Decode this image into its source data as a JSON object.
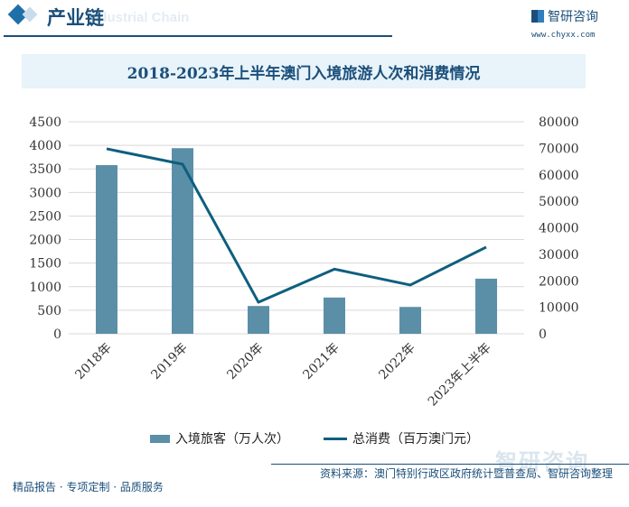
{
  "header": {
    "title": "产业链",
    "subtitle": "Industrial Chain",
    "logo_text": "智研咨询",
    "logo_url": "www.chyxx.com"
  },
  "footer": {
    "left": "精品报告 · 专项定制 · 品质服务",
    "source": "资料来源：澳门特别行政区政府统计暨普查局、智研咨询整理",
    "watermark": "智研咨询"
  },
  "chart_data": {
    "type": "bar+line",
    "title": "2018-2023年上半年澳门入境旅游人次和消费情况",
    "categories": [
      "2018年",
      "2019年",
      "2020年",
      "2021年",
      "2022年",
      "2023年上半年"
    ],
    "series": [
      {
        "name": "入境旅客（万人次）",
        "type": "bar",
        "axis": "left",
        "color": "#5b8fa8",
        "values": [
          3580,
          3940,
          590,
          770,
          570,
          1170
        ]
      },
      {
        "name": "总消费（百万澳门元）",
        "type": "line",
        "axis": "right",
        "color": "#0e5f7e",
        "values": [
          69800,
          64000,
          11900,
          24400,
          18400,
          32700
        ]
      }
    ],
    "ylim_left": [
      0,
      4500
    ],
    "yticks_left": [
      0,
      500,
      1000,
      1500,
      2000,
      2500,
      3000,
      3500,
      4000,
      4500
    ],
    "ylim_right": [
      0,
      80000
    ],
    "yticks_right": [
      0,
      10000,
      20000,
      30000,
      40000,
      50000,
      60000,
      70000,
      80000
    ],
    "grid": true,
    "legend": "bottom"
  }
}
